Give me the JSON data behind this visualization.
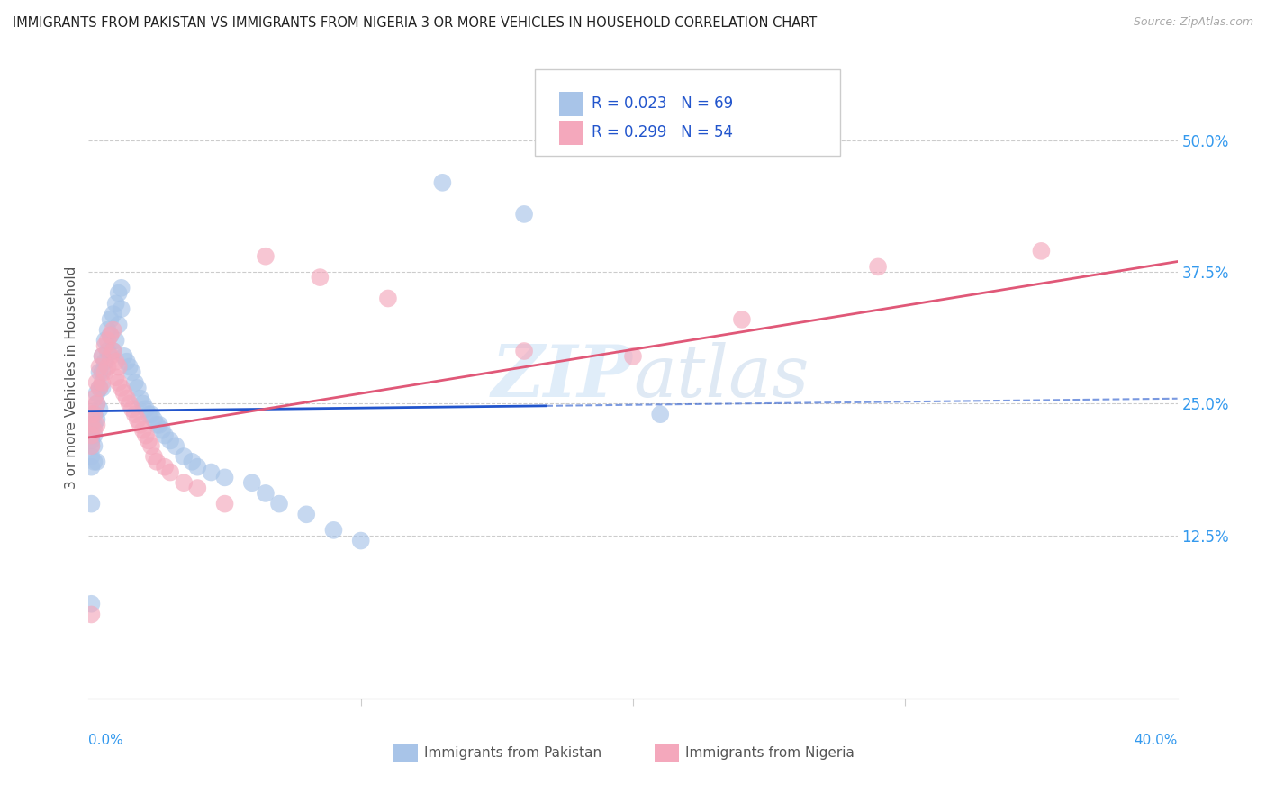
{
  "title": "IMMIGRANTS FROM PAKISTAN VS IMMIGRANTS FROM NIGERIA 3 OR MORE VEHICLES IN HOUSEHOLD CORRELATION CHART",
  "source": "Source: ZipAtlas.com",
  "ylabel": "3 or more Vehicles in Household",
  "ytick_labels": [
    "12.5%",
    "25.0%",
    "37.5%",
    "50.0%"
  ],
  "ytick_values": [
    0.125,
    0.25,
    0.375,
    0.5
  ],
  "xlim": [
    0.0,
    0.4
  ],
  "ylim": [
    -0.03,
    0.58
  ],
  "pakistan_R": 0.023,
  "pakistan_N": 69,
  "nigeria_R": 0.299,
  "nigeria_N": 54,
  "pakistan_color": "#a8c4e8",
  "nigeria_color": "#f4a8bc",
  "pakistan_line_color": "#2255cc",
  "nigeria_line_color": "#e05878",
  "watermark_zip": "ZIP",
  "watermark_atlas": "atlas",
  "legend_label_1": "Immigrants from Pakistan",
  "legend_label_2": "Immigrants from Nigeria",
  "pak_line_x_end": 0.168,
  "pak_line_start_y": 0.243,
  "pak_line_end_y": 0.248,
  "nig_line_start_y": 0.218,
  "nig_line_end_y": 0.385,
  "pakistan_x": [
    0.001,
    0.001,
    0.001,
    0.001,
    0.001,
    0.001,
    0.002,
    0.002,
    0.002,
    0.002,
    0.002,
    0.003,
    0.003,
    0.003,
    0.003,
    0.004,
    0.004,
    0.004,
    0.005,
    0.005,
    0.005,
    0.006,
    0.006,
    0.007,
    0.007,
    0.008,
    0.008,
    0.009,
    0.009,
    0.01,
    0.01,
    0.011,
    0.011,
    0.012,
    0.012,
    0.013,
    0.014,
    0.015,
    0.016,
    0.017,
    0.018,
    0.019,
    0.02,
    0.021,
    0.022,
    0.023,
    0.024,
    0.025,
    0.026,
    0.027,
    0.028,
    0.03,
    0.032,
    0.035,
    0.038,
    0.04,
    0.045,
    0.05,
    0.06,
    0.065,
    0.07,
    0.08,
    0.09,
    0.1,
    0.13,
    0.16,
    0.21,
    0.001,
    0.001
  ],
  "pakistan_y": [
    0.23,
    0.22,
    0.215,
    0.21,
    0.2,
    0.19,
    0.24,
    0.23,
    0.22,
    0.21,
    0.195,
    0.26,
    0.25,
    0.235,
    0.195,
    0.28,
    0.265,
    0.245,
    0.295,
    0.28,
    0.265,
    0.31,
    0.29,
    0.32,
    0.3,
    0.33,
    0.315,
    0.335,
    0.3,
    0.345,
    0.31,
    0.355,
    0.325,
    0.36,
    0.34,
    0.295,
    0.29,
    0.285,
    0.28,
    0.27,
    0.265,
    0.255,
    0.25,
    0.245,
    0.24,
    0.24,
    0.235,
    0.23,
    0.23,
    0.225,
    0.22,
    0.215,
    0.21,
    0.2,
    0.195,
    0.19,
    0.185,
    0.18,
    0.175,
    0.165,
    0.155,
    0.145,
    0.13,
    0.12,
    0.46,
    0.43,
    0.24,
    0.06,
    0.155
  ],
  "nigeria_x": [
    0.001,
    0.001,
    0.001,
    0.001,
    0.002,
    0.002,
    0.002,
    0.003,
    0.003,
    0.003,
    0.004,
    0.004,
    0.005,
    0.005,
    0.006,
    0.006,
    0.007,
    0.007,
    0.008,
    0.008,
    0.009,
    0.009,
    0.01,
    0.01,
    0.011,
    0.011,
    0.012,
    0.013,
    0.014,
    0.015,
    0.016,
    0.017,
    0.018,
    0.019,
    0.02,
    0.021,
    0.022,
    0.023,
    0.024,
    0.025,
    0.028,
    0.03,
    0.035,
    0.04,
    0.05,
    0.065,
    0.085,
    0.11,
    0.16,
    0.2,
    0.24,
    0.29,
    0.35,
    0.001
  ],
  "nigeria_y": [
    0.24,
    0.23,
    0.22,
    0.21,
    0.255,
    0.24,
    0.225,
    0.27,
    0.25,
    0.23,
    0.285,
    0.265,
    0.295,
    0.27,
    0.305,
    0.28,
    0.31,
    0.285,
    0.315,
    0.295,
    0.32,
    0.3,
    0.29,
    0.275,
    0.285,
    0.27,
    0.265,
    0.26,
    0.255,
    0.25,
    0.245,
    0.24,
    0.235,
    0.23,
    0.225,
    0.22,
    0.215,
    0.21,
    0.2,
    0.195,
    0.19,
    0.185,
    0.175,
    0.17,
    0.155,
    0.39,
    0.37,
    0.35,
    0.3,
    0.295,
    0.33,
    0.38,
    0.395,
    0.05
  ]
}
